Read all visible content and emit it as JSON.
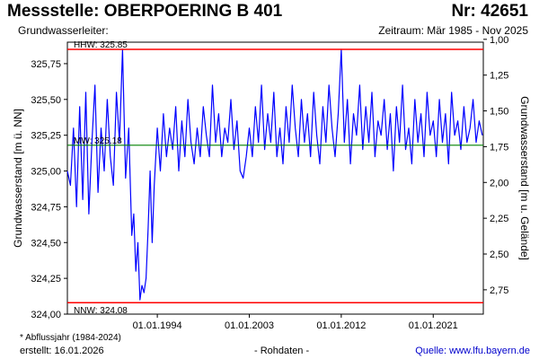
{
  "header": {
    "title": "Messstelle: OBERPOERING B 401",
    "number": "Nr: 42651",
    "aquifer": "Grundwasserleiter:",
    "period": "Zeitraum: Mär 1985 - Nov 2025"
  },
  "footer": {
    "note": "* Abflussjahr (1984-2024)",
    "created": "erstellt:  16.01.2026",
    "raw": "- Rohdaten -",
    "source": "Quelle: www.lfu.bayern.de"
  },
  "colors": {
    "series": "#0000ff",
    "hhw": "#ff0000",
    "nnw": "#ff0000",
    "mw": "#008000",
    "axis": "#000000",
    "background": "#ffffff"
  },
  "chart_data": {
    "type": "line",
    "ylabel_left": "Grundwasserstand [m ü. NN]",
    "ylabel_right": "Grundwasserstand [m u. Gelände]",
    "xlim": [
      1985.2,
      2025.9
    ],
    "ylim": [
      324.0,
      325.9
    ],
    "yticks_left": [
      324.0,
      324.25,
      324.5,
      324.75,
      325.0,
      325.25,
      325.5,
      325.75
    ],
    "ytick_labels_left": [
      "324,00",
      "324,25",
      "324,50",
      "324,75",
      "325,00",
      "325,25",
      "325,50",
      "325,75"
    ],
    "yticks_right": [
      1.0,
      1.25,
      1.5,
      1.75,
      2.0,
      2.25,
      2.5,
      2.75
    ],
    "ytick_labels_right": [
      "1,00",
      "1,25",
      "1,50",
      "1,75",
      "2,00",
      "2,25",
      "2,50",
      "2,75"
    ],
    "right_axis_reference": 326.92,
    "xticks": [
      1994.0,
      2003.0,
      2012.0,
      2021.0
    ],
    "xtick_labels": [
      "01.01.1994",
      "01.01.2003",
      "01.01.2012",
      "01.01.2021"
    ],
    "reference_lines": [
      {
        "key": "hhw",
        "label": "HHW: 325.85",
        "value": 325.85
      },
      {
        "key": "mw",
        "label": "MW: 325.18",
        "value": 325.18
      },
      {
        "key": "nnw",
        "label": "NNW: 324.08",
        "value": 324.08
      }
    ],
    "series": [
      {
        "x": [
          1985.2,
          1985.5,
          1985.8,
          1986.1,
          1986.4,
          1986.7,
          1987.0,
          1987.3,
          1987.6,
          1987.9,
          1988.2,
          1988.5,
          1988.8,
          1989.1,
          1989.4,
          1989.7,
          1990.0,
          1990.3,
          1990.6,
          1990.9,
          1991.2,
          1991.5,
          1991.7,
          1991.9,
          1992.1,
          1992.3,
          1992.5,
          1992.7,
          1992.9,
          1993.1,
          1993.3,
          1993.5,
          1993.7,
          1994.0,
          1994.3,
          1994.6,
          1994.9,
          1995.2,
          1995.5,
          1995.8,
          1996.1,
          1996.4,
          1996.7,
          1997.0,
          1997.3,
          1997.6,
          1997.9,
          1998.2,
          1998.5,
          1998.8,
          1999.1,
          1999.4,
          1999.7,
          2000.0,
          2000.3,
          2000.6,
          2000.9,
          2001.2,
          2001.5,
          2001.8,
          2002.1,
          2002.4,
          2002.7,
          2003.0,
          2003.3,
          2003.6,
          2003.9,
          2004.2,
          2004.5,
          2004.8,
          2005.1,
          2005.4,
          2005.7,
          2006.0,
          2006.3,
          2006.6,
          2006.9,
          2007.2,
          2007.5,
          2007.8,
          2008.1,
          2008.4,
          2008.7,
          2009.0,
          2009.3,
          2009.6,
          2009.9,
          2010.2,
          2010.5,
          2010.8,
          2011.1,
          2011.4,
          2011.7,
          2012.0,
          2012.3,
          2012.6,
          2012.9,
          2013.2,
          2013.5,
          2013.8,
          2014.1,
          2014.4,
          2014.7,
          2015.0,
          2015.3,
          2015.6,
          2015.9,
          2016.2,
          2016.5,
          2016.8,
          2017.1,
          2017.4,
          2017.7,
          2018.0,
          2018.3,
          2018.6,
          2018.9,
          2019.2,
          2019.5,
          2019.8,
          2020.1,
          2020.4,
          2020.7,
          2021.0,
          2021.3,
          2021.6,
          2021.9,
          2022.2,
          2022.5,
          2022.8,
          2023.1,
          2023.4,
          2023.7,
          2024.0,
          2024.3,
          2024.6,
          2024.9,
          2025.2,
          2025.5,
          2025.8
        ],
        "values": [
          325.0,
          324.9,
          325.3,
          324.75,
          325.45,
          324.8,
          325.55,
          324.7,
          325.2,
          325.6,
          324.85,
          325.3,
          325.0,
          325.5,
          325.1,
          324.9,
          325.55,
          325.2,
          325.85,
          324.95,
          325.3,
          324.55,
          324.7,
          324.3,
          324.5,
          324.1,
          324.2,
          324.15,
          324.25,
          324.6,
          325.0,
          324.5,
          324.9,
          325.3,
          325.0,
          325.4,
          325.1,
          325.3,
          325.15,
          325.45,
          325.0,
          325.35,
          325.1,
          325.5,
          325.2,
          325.05,
          325.3,
          325.1,
          325.45,
          325.25,
          325.1,
          325.6,
          325.2,
          325.4,
          325.1,
          325.3,
          325.2,
          325.5,
          325.15,
          325.35,
          325.0,
          324.95,
          325.1,
          325.3,
          325.1,
          325.45,
          325.2,
          325.6,
          325.15,
          325.4,
          325.2,
          325.55,
          325.1,
          325.3,
          325.05,
          325.45,
          325.2,
          325.6,
          325.3,
          325.1,
          325.5,
          325.2,
          325.4,
          325.1,
          325.55,
          325.25,
          325.05,
          325.45,
          325.2,
          325.6,
          325.3,
          325.1,
          325.4,
          325.85,
          325.2,
          325.5,
          325.05,
          325.4,
          325.25,
          325.6,
          325.15,
          325.45,
          325.2,
          325.55,
          325.1,
          325.35,
          325.25,
          325.5,
          325.15,
          325.4,
          325.0,
          325.45,
          325.2,
          325.6,
          325.15,
          325.3,
          325.05,
          325.5,
          325.2,
          325.4,
          325.1,
          325.55,
          325.25,
          325.35,
          325.1,
          325.5,
          325.2,
          325.4,
          325.05,
          325.55,
          325.25,
          325.35,
          325.15,
          325.45,
          325.2,
          325.3,
          325.5,
          325.2,
          325.35,
          325.25
        ]
      }
    ]
  }
}
